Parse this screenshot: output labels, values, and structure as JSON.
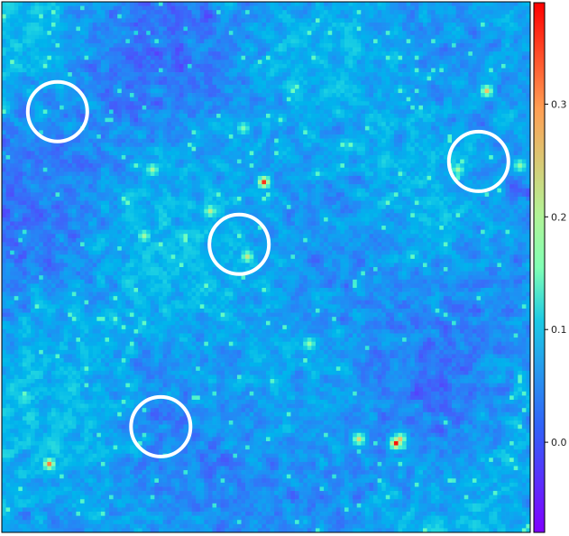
{
  "chart_data": {
    "type": "heatmap",
    "title": "",
    "xlabel": "",
    "ylabel": "",
    "grid": false,
    "axes_visible": false,
    "colormap": "rainbow",
    "grid_size": [
      128,
      128
    ],
    "value_range": [
      -0.08,
      0.39
    ],
    "background_level": 0.02,
    "colorbar": {
      "ticks": [
        {
          "value": 0.0,
          "label": "0.0"
        },
        {
          "value": 0.1,
          "label": "0.1"
        },
        {
          "value": 0.2,
          "label": "0.2"
        },
        {
          "value": 0.3,
          "label": "0.3"
        }
      ]
    },
    "hotspots": [
      {
        "col": 63,
        "row": 43,
        "value": 0.36
      },
      {
        "col": 95,
        "row": 106,
        "value": 0.38
      },
      {
        "col": 96,
        "row": 105,
        "value": 0.26
      },
      {
        "col": 11,
        "row": 111,
        "value": 0.31
      },
      {
        "col": 117,
        "row": 21,
        "value": 0.26
      },
      {
        "col": 59,
        "row": 61,
        "value": 0.22
      },
      {
        "col": 50,
        "row": 50,
        "value": 0.21
      },
      {
        "col": 86,
        "row": 105,
        "value": 0.24
      },
      {
        "col": 36,
        "row": 40,
        "value": 0.19
      },
      {
        "col": 110,
        "row": 40,
        "value": 0.18
      },
      {
        "col": 125,
        "row": 39,
        "value": 0.17
      },
      {
        "col": 34,
        "row": 56,
        "value": 0.18
      },
      {
        "col": 74,
        "row": 82,
        "value": 0.17
      },
      {
        "col": 58,
        "row": 30,
        "value": 0.15
      }
    ],
    "annotations": [
      {
        "shape": "circle",
        "col": 13,
        "row": 26
      },
      {
        "shape": "circle",
        "col": 115,
        "row": 38
      },
      {
        "shape": "circle",
        "col": 57,
        "row": 58
      },
      {
        "shape": "circle",
        "col": 38,
        "row": 102
      }
    ],
    "annotation_color": "#ffffff"
  }
}
